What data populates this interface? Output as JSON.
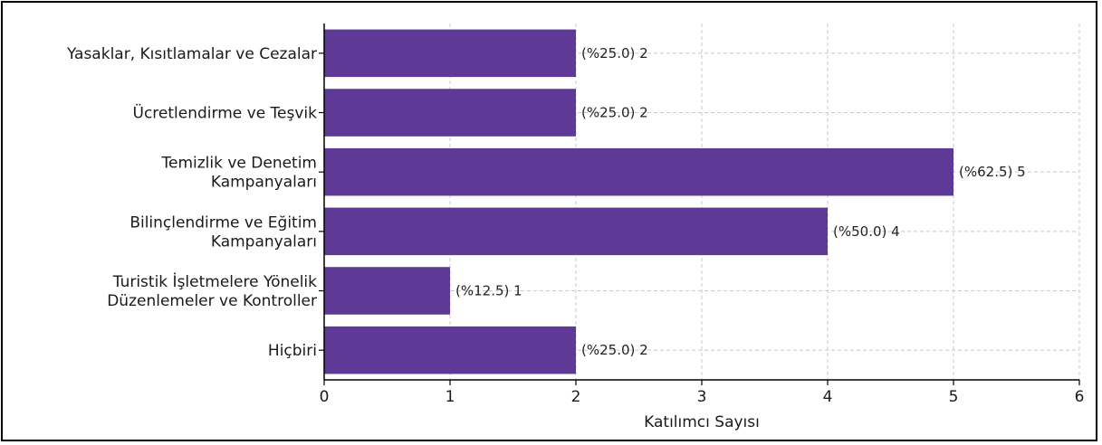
{
  "chart_data": {
    "type": "bar",
    "orientation": "horizontal",
    "categories": [
      [
        "Yasaklar, Kısıtlamalar ve Cezalar"
      ],
      [
        "Ücretlendirme ve Teşvik"
      ],
      [
        "Temizlik ve Denetim",
        "Kampanyaları"
      ],
      [
        "Bilinçlendirme ve Eğitim",
        "Kampanyaları"
      ],
      [
        "Turistik İşletmelere Yönelik",
        "Düzenlemeler ve Kontroller"
      ],
      [
        "Hiçbiri"
      ]
    ],
    "values": [
      2,
      2,
      5,
      4,
      1,
      2
    ],
    "data_labels": [
      "(%25.0) 2",
      "(%25.0) 2",
      "(%62.5) 5",
      "(%50.0) 4",
      "(%12.5) 1",
      "(%25.0) 2"
    ],
    "title": "",
    "xlabel": "Katılımcı Sayısı",
    "ylabel": "",
    "xlim": [
      0,
      6
    ],
    "xticks": [
      "0",
      "1",
      "2",
      "3",
      "4",
      "5",
      "6"
    ],
    "grid": true,
    "bar_color": "#5e3a96"
  }
}
